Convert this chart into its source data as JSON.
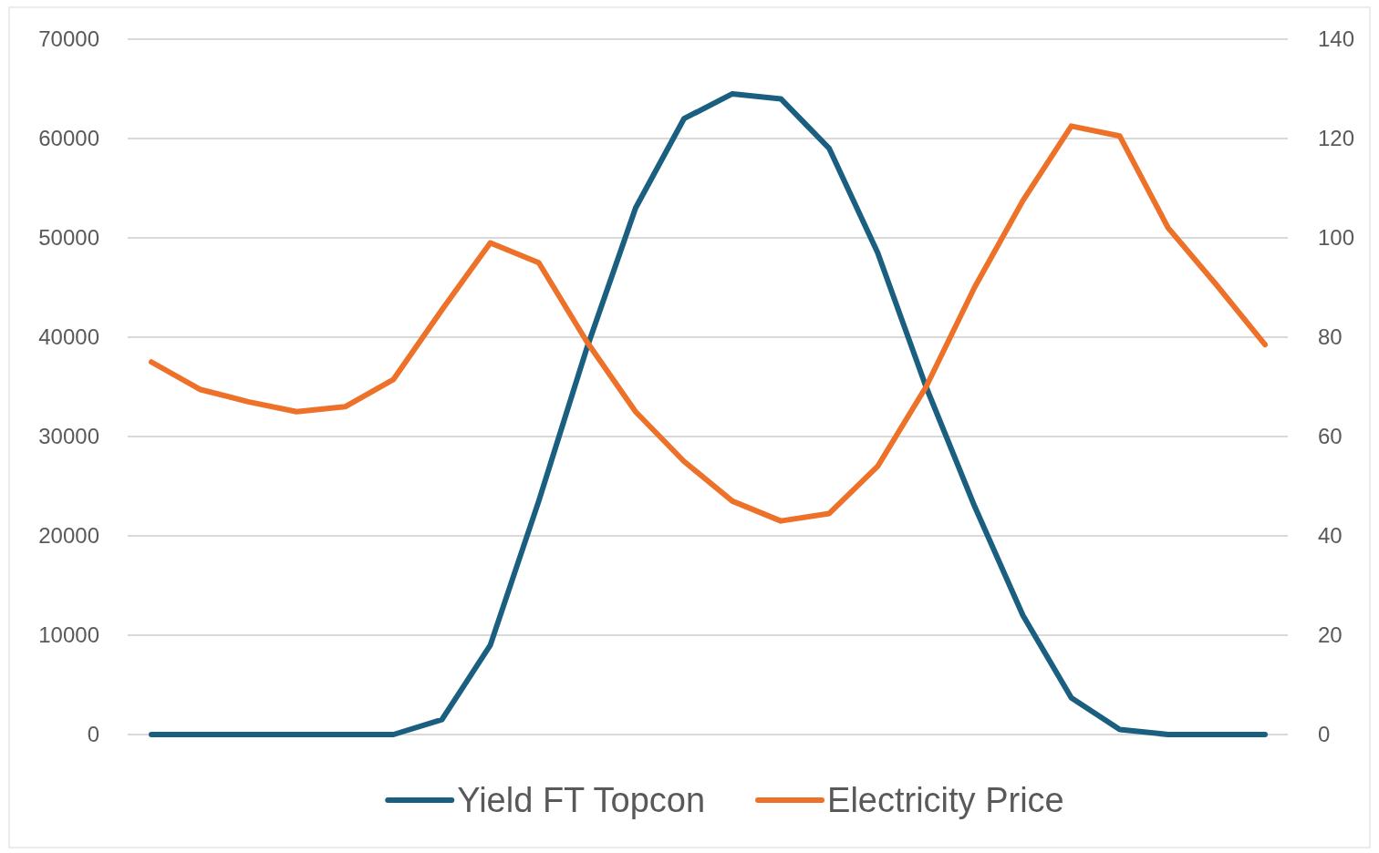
{
  "chart_data": {
    "type": "line",
    "categories": [
      null,
      null,
      null,
      null,
      null,
      null,
      null,
      null,
      null,
      null,
      null,
      null,
      null,
      null,
      null,
      null,
      null,
      null,
      null,
      null,
      null,
      null,
      null,
      null
    ],
    "series": [
      {
        "name": "Yield FT Topcon",
        "color": "#1a5f80",
        "values": [
          0,
          0,
          0,
          0,
          0,
          0,
          1500,
          9000,
          23500,
          39000,
          53000,
          62000,
          64500,
          64000,
          59000,
          48500,
          35000,
          23000,
          12000,
          3700,
          500,
          0,
          0,
          0
        ]
      },
      {
        "name": "Electricity Price",
        "color": "#ed7128",
        "axis": "y2",
        "values": [
          75,
          69.5,
          67,
          65,
          66,
          71.5,
          85.5,
          99,
          95,
          79,
          65,
          55,
          47,
          43,
          44.5,
          54,
          70,
          90,
          107.5,
          122.5,
          120.5,
          102,
          90.5,
          78.5
        ]
      }
    ],
    "ylim": [
      0,
      70000
    ],
    "yticks": [
      0,
      10000,
      20000,
      30000,
      40000,
      50000,
      60000,
      70000
    ],
    "y2lim": [
      0,
      140
    ],
    "y2ticks": [
      0,
      20,
      40,
      60,
      80,
      100,
      120,
      140
    ],
    "grid": "y",
    "legend": "bottom",
    "marker": "none",
    "line_style": "solid"
  }
}
